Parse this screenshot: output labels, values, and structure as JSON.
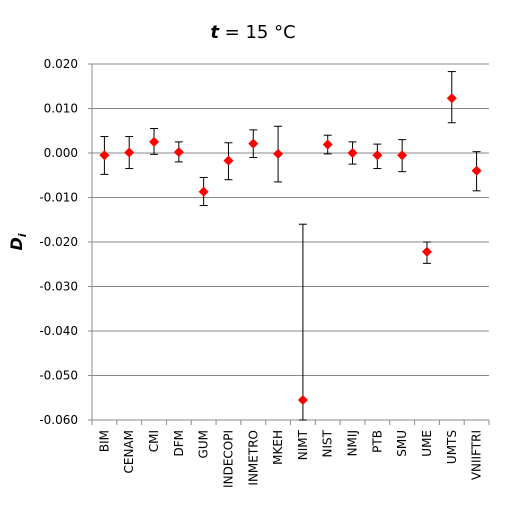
{
  "chart_data": {
    "type": "scatter",
    "title": {
      "var": "t",
      "rest": " = 15 °C"
    },
    "ylabel": {
      "main": "D",
      "sub": "i"
    },
    "xlabel": "",
    "ylim": [
      -0.06,
      0.02
    ],
    "yticks": [
      0.02,
      0.01,
      0.0,
      -0.01,
      -0.02,
      -0.03,
      -0.04,
      -0.05,
      -0.06
    ],
    "ytick_labels": [
      "0.020",
      "0.010",
      "0.000",
      "-0.010",
      "-0.020",
      "-0.030",
      "-0.040",
      "-0.050",
      "-0.060"
    ],
    "grid": true,
    "categories": [
      "BIM",
      "CENAM",
      "CMI",
      "DFM",
      "GUM",
      "INDECOPI",
      "INMETRO",
      "MKEH",
      "NIMT",
      "NIST",
      "NMIJ",
      "PTB",
      "SMU",
      "UME",
      "UMTS",
      "VNIIFTRI"
    ],
    "series": [
      {
        "values": [
          -0.0005,
          0.0001,
          0.0025,
          0.0002,
          -0.0087,
          -0.0017,
          0.0021,
          -0.0002,
          -0.0555,
          0.0019,
          0.0,
          -0.0005,
          -0.0005,
          -0.0222,
          0.0123,
          -0.004
        ],
        "error_upper": [
          0.0037,
          0.0037,
          0.0055,
          0.0025,
          -0.0055,
          0.0023,
          0.0052,
          0.006,
          -0.016,
          0.004,
          0.0025,
          0.002,
          0.003,
          -0.02,
          0.0183,
          0.0003
        ],
        "error_lower": [
          -0.0048,
          -0.0035,
          -0.0003,
          -0.002,
          -0.0118,
          -0.006,
          -0.001,
          -0.0065,
          -0.06,
          -0.0002,
          -0.0025,
          -0.0035,
          -0.0042,
          -0.0248,
          0.0068,
          -0.0085
        ],
        "marker": "diamond"
      }
    ],
    "colors": {
      "marker": "#ff0000",
      "error_bar": "#000000",
      "grid": "#888888"
    }
  }
}
